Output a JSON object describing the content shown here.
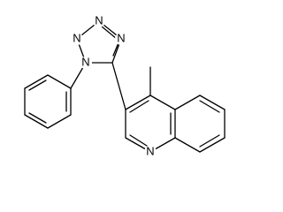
{
  "atoms": [
    "N",
    "N",
    "N",
    "N",
    "N"
  ]
}
